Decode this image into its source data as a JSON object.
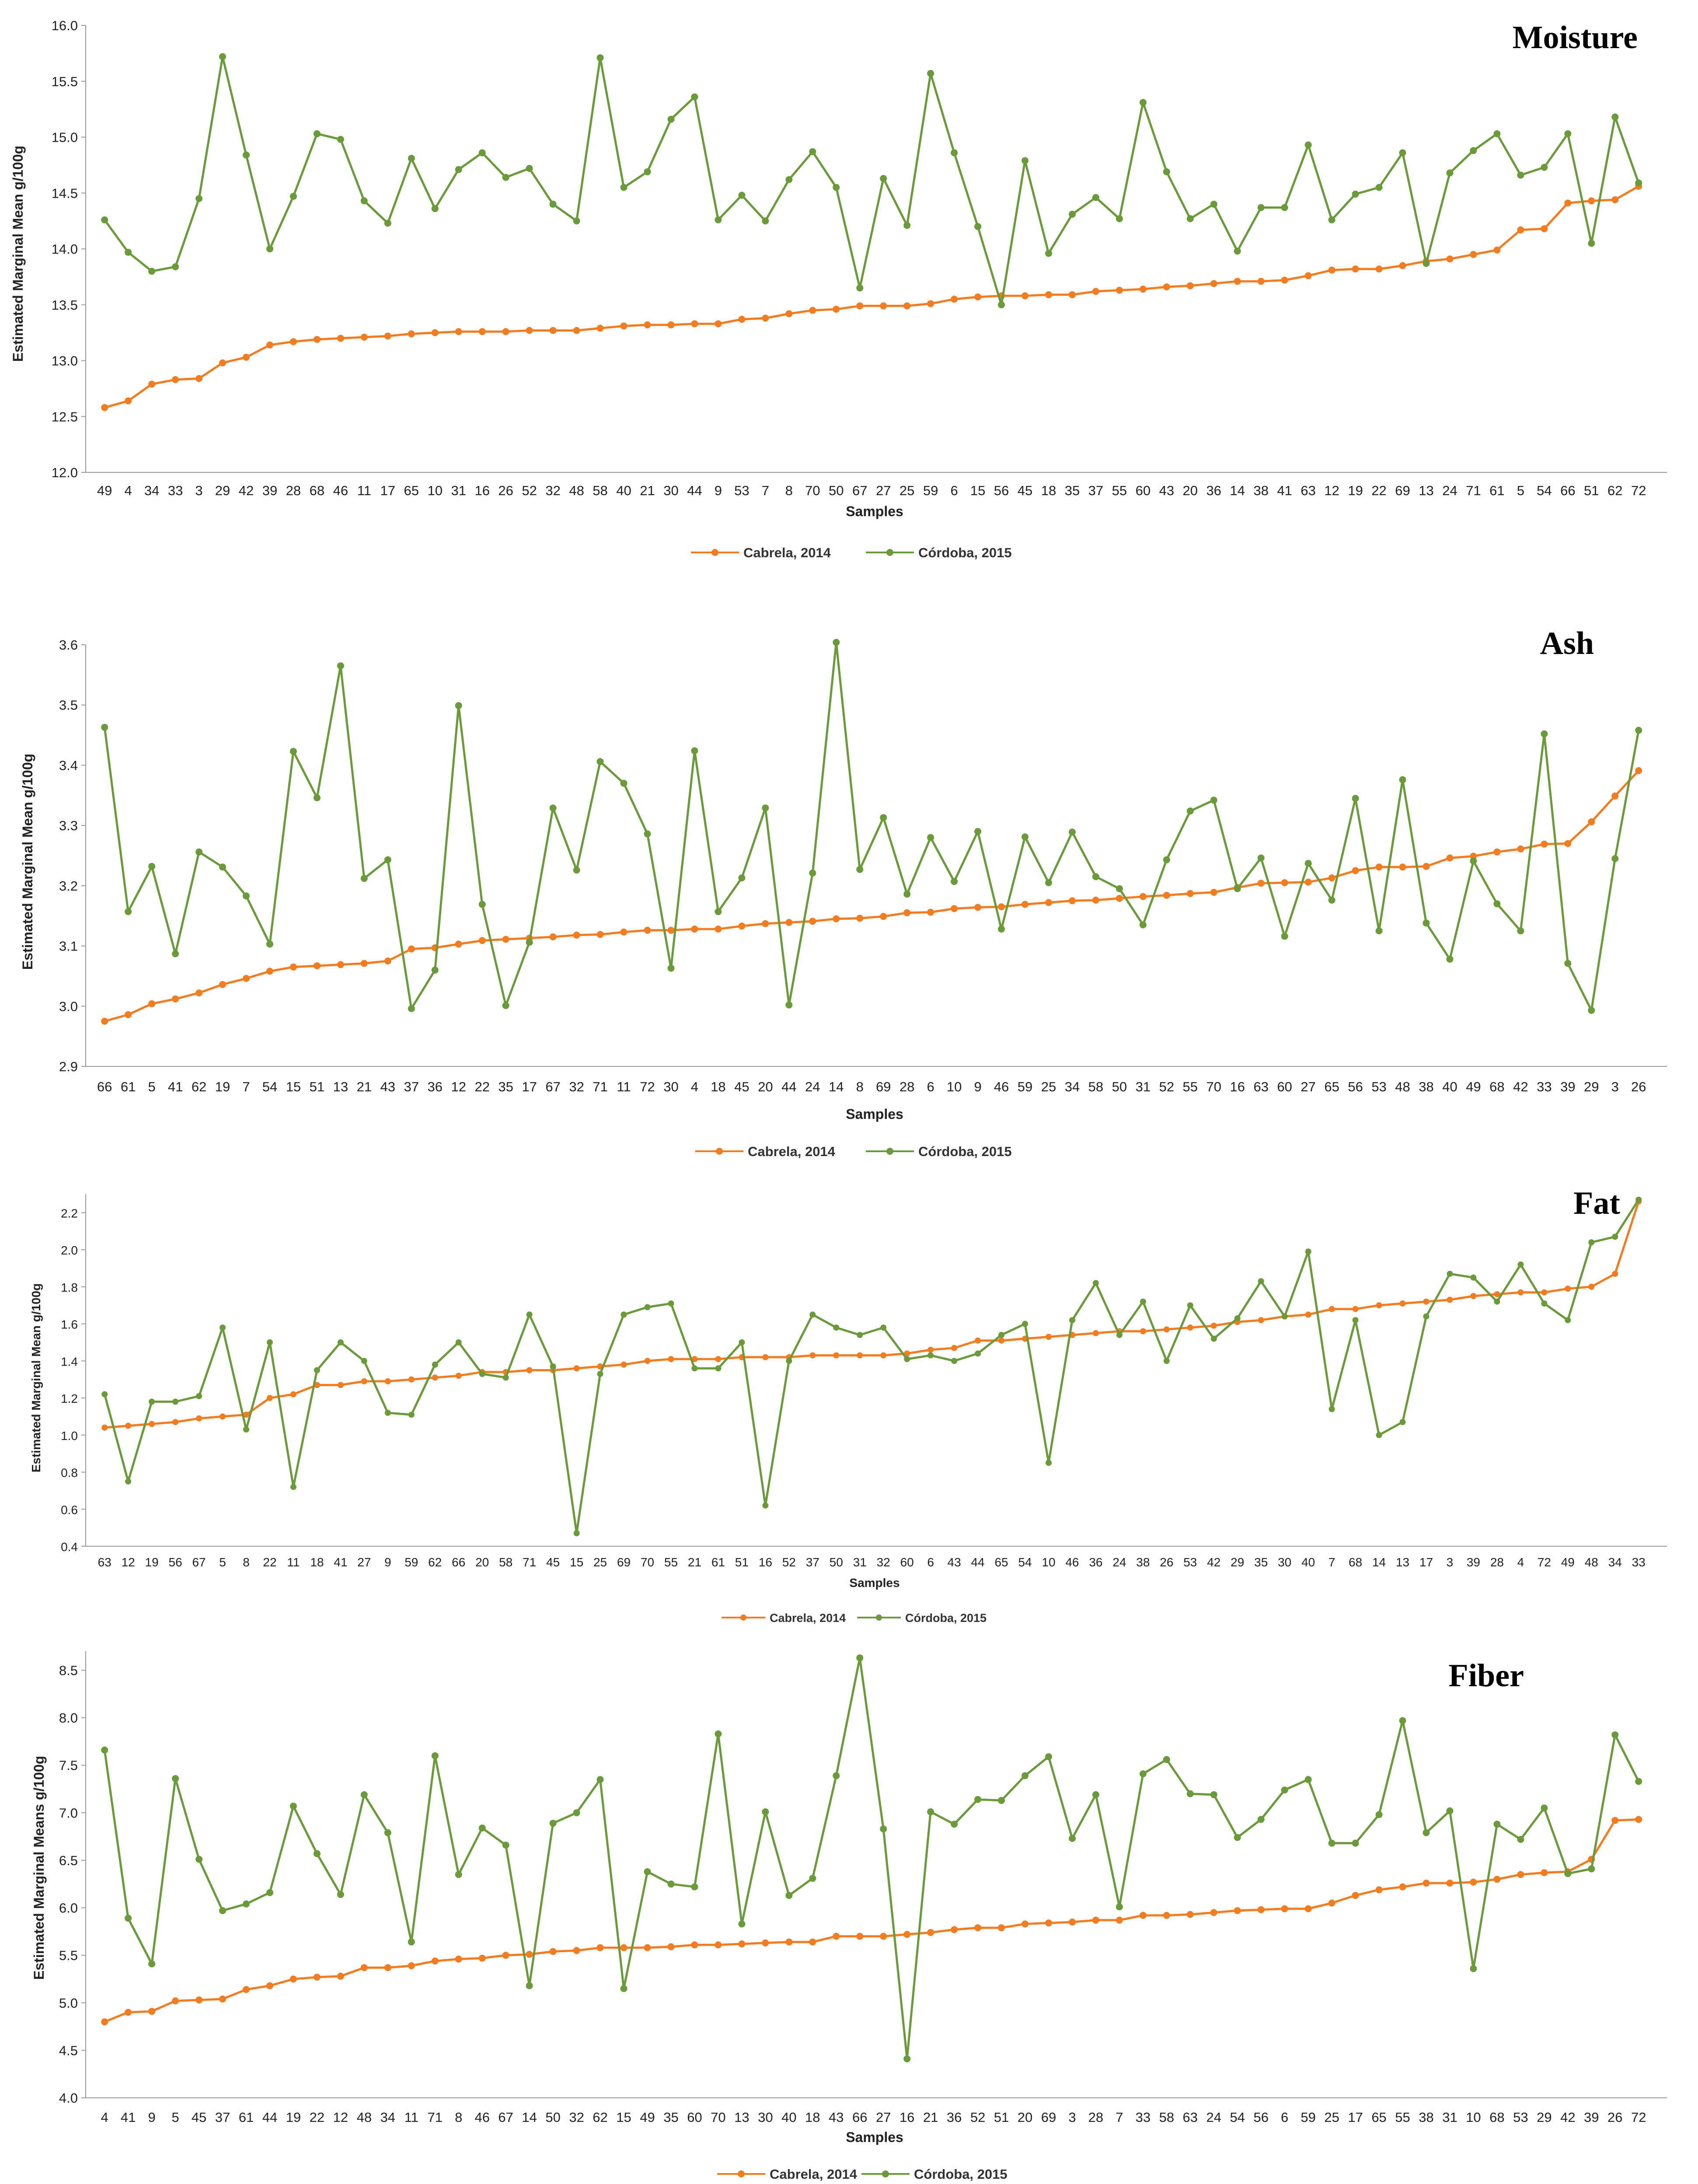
{
  "chart_data": [
    {
      "type": "line",
      "title": "Moisture",
      "xlabel": "Samples",
      "ylabel": "Estimated Marginal Mean g/100g",
      "ylim": [
        12.0,
        16.0
      ],
      "yticks": [
        "12.0",
        "12.5",
        "13.0",
        "13.5",
        "14.0",
        "14.5",
        "15.0",
        "15.5",
        "16.0"
      ],
      "categories": [
        "49",
        "4",
        "34",
        "33",
        "3",
        "29",
        "42",
        "39",
        "28",
        "68",
        "46",
        "11",
        "17",
        "65",
        "10",
        "31",
        "16",
        "26",
        "52",
        "32",
        "48",
        "58",
        "40",
        "21",
        "30",
        "44",
        "9",
        "53",
        "7",
        "8",
        "70",
        "50",
        "67",
        "27",
        "25",
        "59",
        "6",
        "15",
        "56",
        "45",
        "18",
        "35",
        "37",
        "55",
        "60",
        "43",
        "20",
        "36",
        "14",
        "38",
        "41",
        "63",
        "12",
        "19",
        "22",
        "69",
        "13",
        "24",
        "71",
        "61",
        "5",
        "54",
        "66",
        "51",
        "62",
        "72"
      ],
      "series": [
        {
          "name": "Cabrela, 2014",
          "color": "#f47c20",
          "values": [
            12.58,
            12.64,
            12.79,
            12.83,
            12.84,
            12.98,
            13.03,
            13.14,
            13.17,
            13.19,
            13.2,
            13.21,
            13.22,
            13.24,
            13.25,
            13.26,
            13.26,
            13.26,
            13.27,
            13.27,
            13.27,
            13.29,
            13.31,
            13.32,
            13.32,
            13.33,
            13.33,
            13.37,
            13.38,
            13.42,
            13.45,
            13.46,
            13.49,
            13.49,
            13.49,
            13.51,
            13.55,
            13.57,
            13.58,
            13.58,
            13.59,
            13.59,
            13.62,
            13.63,
            13.64,
            13.66,
            13.67,
            13.69,
            13.71,
            13.71,
            13.72,
            13.76,
            13.81,
            13.82,
            13.82,
            13.85,
            13.89,
            13.91,
            13.95,
            13.99,
            14.17,
            14.18,
            14.41,
            14.43,
            14.44,
            14.56
          ]
        },
        {
          "name": "Córdoba, 2015",
          "color": "#6a9a3a",
          "values": [
            14.26,
            13.97,
            13.8,
            13.84,
            14.45,
            15.72,
            14.84,
            14.0,
            14.47,
            15.03,
            14.98,
            14.43,
            14.23,
            14.81,
            14.36,
            14.71,
            14.86,
            14.64,
            14.72,
            14.4,
            14.25,
            15.71,
            14.55,
            14.69,
            15.16,
            15.36,
            14.26,
            14.48,
            14.25,
            14.62,
            14.87,
            14.55,
            13.65,
            14.63,
            14.21,
            15.57,
            14.86,
            14.2,
            13.5,
            14.79,
            13.96,
            14.31,
            14.46,
            14.27,
            15.31,
            14.69,
            14.27,
            14.4,
            13.98,
            14.37,
            14.37,
            14.93,
            14.26,
            14.49,
            14.55,
            14.86,
            13.87,
            14.68,
            14.88,
            15.03,
            14.66,
            14.73,
            15.03,
            14.05,
            15.18,
            14.59
          ]
        }
      ]
    },
    {
      "type": "line",
      "title": "Ash",
      "xlabel": "Samples",
      "ylabel": "Estimated Marginal Mean g/100g",
      "ylim": [
        2.9,
        3.6
      ],
      "yticks": [
        "2.9",
        "3.0",
        "3.1",
        "3.2",
        "3.3",
        "3.4",
        "3.5",
        "3.6"
      ],
      "categories": [
        "66",
        "61",
        "5",
        "41",
        "62",
        "19",
        "7",
        "54",
        "15",
        "51",
        "13",
        "21",
        "43",
        "37",
        "36",
        "12",
        "22",
        "35",
        "17",
        "67",
        "32",
        "71",
        "11",
        "72",
        "30",
        "4",
        "18",
        "45",
        "20",
        "44",
        "24",
        "14",
        "8",
        "69",
        "28",
        "6",
        "10",
        "9",
        "46",
        "59",
        "25",
        "34",
        "58",
        "50",
        "31",
        "52",
        "55",
        "70",
        "16",
        "63",
        "60",
        "27",
        "65",
        "56",
        "53",
        "48",
        "38",
        "40",
        "49",
        "68",
        "42",
        "33",
        "39",
        "29",
        "3",
        "26"
      ],
      "series": [
        {
          "name": "Cabrela, 2014",
          "color": "#f47c20",
          "values": [
            2.975,
            2.986,
            3.004,
            3.012,
            3.022,
            3.036,
            3.046,
            3.058,
            3.065,
            3.067,
            3.069,
            3.071,
            3.075,
            3.095,
            3.097,
            3.103,
            3.109,
            3.111,
            3.113,
            3.115,
            3.118,
            3.119,
            3.123,
            3.126,
            3.126,
            3.128,
            3.128,
            3.133,
            3.137,
            3.139,
            3.141,
            3.145,
            3.146,
            3.149,
            3.155,
            3.156,
            3.162,
            3.164,
            3.165,
            3.169,
            3.172,
            3.175,
            3.176,
            3.179,
            3.182,
            3.184,
            3.187,
            3.189,
            3.197,
            3.204,
            3.205,
            3.206,
            3.213,
            3.225,
            3.231,
            3.231,
            3.232,
            3.246,
            3.249,
            3.256,
            3.261,
            3.269,
            3.27,
            3.306,
            3.349,
            3.391
          ]
        },
        {
          "name": "Córdoba, 2015",
          "color": "#6a9a3a",
          "values": [
            3.463,
            3.157,
            3.232,
            3.087,
            3.256,
            3.231,
            3.183,
            3.103,
            3.423,
            3.346,
            3.565,
            3.212,
            3.243,
            2.996,
            3.06,
            3.499,
            3.169,
            3.001,
            3.106,
            3.329,
            3.226,
            3.406,
            3.37,
            3.286,
            3.063,
            3.424,
            3.157,
            3.213,
            3.329,
            3.002,
            3.221,
            3.604,
            3.227,
            3.313,
            3.186,
            3.28,
            3.207,
            3.29,
            3.128,
            3.281,
            3.205,
            3.289,
            3.215,
            3.195,
            3.135,
            3.243,
            3.324,
            3.342,
            3.195,
            3.246,
            3.116,
            3.237,
            3.176,
            3.345,
            3.125,
            3.376,
            3.138,
            3.078,
            3.241,
            3.17,
            3.125,
            3.452,
            3.071,
            2.993,
            3.245,
            3.458
          ]
        }
      ]
    },
    {
      "type": "line",
      "title": "Fat",
      "xlabel": "Samples",
      "ylabel": "Estimated Marginal Mean g/100g",
      "ylim": [
        0.4,
        2.3
      ],
      "yticks": [
        "0.4",
        "0.6",
        "0.8",
        "1.0",
        "1.2",
        "1.4",
        "1.6",
        "1.8",
        "2.0",
        "2.2"
      ],
      "categories": [
        "63",
        "12",
        "19",
        "56",
        "67",
        "5",
        "8",
        "22",
        "11",
        "18",
        "41",
        "27",
        "9",
        "59",
        "62",
        "66",
        "20",
        "58",
        "71",
        "45",
        "15",
        "25",
        "69",
        "70",
        "55",
        "21",
        "61",
        "51",
        "16",
        "52",
        "37",
        "50",
        "31",
        "32",
        "60",
        "6",
        "43",
        "44",
        "65",
        "54",
        "10",
        "46",
        "36",
        "24",
        "38",
        "26",
        "53",
        "42",
        "29",
        "35",
        "30",
        "40",
        "7",
        "68",
        "14",
        "13",
        "17",
        "3",
        "39",
        "28",
        "4",
        "72",
        "49",
        "48",
        "34",
        "33"
      ],
      "series": [
        {
          "name": "Cabrela, 2014",
          "color": "#f47c20",
          "values": [
            1.04,
            1.05,
            1.06,
            1.07,
            1.09,
            1.1,
            1.11,
            1.2,
            1.22,
            1.27,
            1.27,
            1.29,
            1.29,
            1.3,
            1.31,
            1.32,
            1.34,
            1.34,
            1.35,
            1.35,
            1.36,
            1.37,
            1.38,
            1.4,
            1.41,
            1.41,
            1.41,
            1.42,
            1.42,
            1.42,
            1.43,
            1.43,
            1.43,
            1.43,
            1.44,
            1.46,
            1.47,
            1.51,
            1.51,
            1.52,
            1.53,
            1.54,
            1.55,
            1.56,
            1.56,
            1.57,
            1.58,
            1.59,
            1.61,
            1.62,
            1.64,
            1.65,
            1.68,
            1.68,
            1.7,
            1.71,
            1.72,
            1.73,
            1.75,
            1.76,
            1.77,
            1.77,
            1.79,
            1.8,
            1.87,
            2.26
          ]
        },
        {
          "name": "Córdoba, 2015",
          "color": "#6a9a3a",
          "values": [
            1.22,
            0.75,
            1.18,
            1.18,
            1.21,
            1.58,
            1.03,
            1.5,
            0.72,
            1.35,
            1.5,
            1.4,
            1.12,
            1.11,
            1.38,
            1.5,
            1.33,
            1.31,
            1.65,
            1.37,
            0.47,
            1.33,
            1.65,
            1.69,
            1.71,
            1.36,
            1.36,
            1.5,
            0.62,
            1.4,
            1.65,
            1.58,
            1.54,
            1.58,
            1.41,
            1.43,
            1.4,
            1.44,
            1.54,
            1.6,
            0.85,
            1.62,
            1.82,
            1.54,
            1.72,
            1.4,
            1.7,
            1.52,
            1.63,
            1.83,
            1.64,
            1.99,
            1.14,
            1.62,
            1.0,
            1.07,
            1.64,
            1.87,
            1.85,
            1.72,
            1.92,
            1.71,
            1.62,
            2.04,
            2.07,
            2.27
          ]
        }
      ]
    },
    {
      "type": "line",
      "title": "Fiber",
      "xlabel": "Samples",
      "ylabel": "Estimated Marginal Means g/100g",
      "ylim": [
        4.0,
        8.7
      ],
      "yticks": [
        "4.0",
        "4.5",
        "5.0",
        "5.5",
        "6.0",
        "6.5",
        "7.0",
        "7.5",
        "8.0",
        "8.5"
      ],
      "categories": [
        "4",
        "41",
        "9",
        "5",
        "45",
        "37",
        "61",
        "44",
        "19",
        "22",
        "12",
        "48",
        "34",
        "11",
        "71",
        "8",
        "46",
        "67",
        "14",
        "50",
        "32",
        "62",
        "15",
        "49",
        "35",
        "60",
        "70",
        "13",
        "30",
        "40",
        "18",
        "43",
        "66",
        "27",
        "16",
        "21",
        "36",
        "52",
        "51",
        "20",
        "69",
        "3",
        "28",
        "7",
        "33",
        "58",
        "63",
        "24",
        "54",
        "56",
        "6",
        "59",
        "25",
        "17",
        "65",
        "55",
        "38",
        "31",
        "10",
        "68",
        "53",
        "29",
        "42",
        "39",
        "26",
        "72"
      ],
      "series": [
        {
          "name": "Cabrela, 2014",
          "color": "#f47c20",
          "values": [
            4.8,
            4.9,
            4.91,
            5.02,
            5.03,
            5.04,
            5.14,
            5.18,
            5.25,
            5.27,
            5.28,
            5.37,
            5.37,
            5.39,
            5.44,
            5.46,
            5.47,
            5.5,
            5.51,
            5.54,
            5.55,
            5.58,
            5.58,
            5.58,
            5.59,
            5.61,
            5.61,
            5.62,
            5.63,
            5.64,
            5.64,
            5.7,
            5.7,
            5.7,
            5.72,
            5.74,
            5.77,
            5.79,
            5.79,
            5.83,
            5.84,
            5.85,
            5.87,
            5.87,
            5.92,
            5.92,
            5.93,
            5.95,
            5.97,
            5.98,
            5.99,
            5.99,
            6.05,
            6.13,
            6.19,
            6.22,
            6.26,
            6.26,
            6.27,
            6.3,
            6.35,
            6.37,
            6.38,
            6.51,
            6.92,
            6.93
          ]
        },
        {
          "name": "Córdoba, 2015",
          "color": "#6a9a3a",
          "values": [
            7.66,
            5.89,
            5.41,
            7.36,
            6.51,
            5.97,
            6.04,
            6.16,
            7.07,
            6.57,
            6.14,
            7.19,
            6.79,
            5.64,
            7.6,
            6.35,
            6.84,
            6.66,
            5.18,
            6.89,
            7.0,
            7.35,
            5.15,
            6.38,
            6.25,
            6.22,
            7.83,
            5.83,
            7.01,
            6.13,
            6.31,
            7.39,
            8.63,
            6.83,
            4.41,
            7.01,
            6.88,
            7.14,
            7.13,
            7.39,
            7.59,
            6.73,
            7.19,
            6.01,
            7.41,
            7.56,
            7.2,
            7.19,
            6.74,
            6.93,
            7.24,
            7.35,
            6.68,
            6.68,
            6.98,
            7.97,
            6.79,
            7.02,
            5.36,
            6.88,
            6.72,
            7.05,
            6.36,
            6.41,
            7.82,
            7.33
          ]
        }
      ]
    }
  ]
}
